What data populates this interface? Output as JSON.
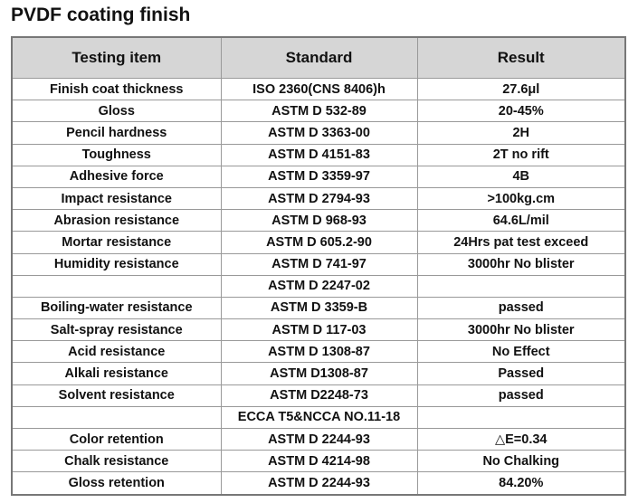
{
  "title": "PVDF coating finish",
  "table": {
    "headers": [
      "Testing item",
      "Standard",
      "Result"
    ],
    "rows": [
      [
        "Finish coat thickness",
        "ISO 2360(CNS 8406)h",
        "27.6μl"
      ],
      [
        "Gloss",
        "ASTM D 532-89",
        "20-45%"
      ],
      [
        "Pencil hardness",
        "ASTM D 3363-00",
        "2H"
      ],
      [
        "Toughness",
        "ASTM D 4151-83",
        "2T no rift"
      ],
      [
        "Adhesive force",
        "ASTM D 3359-97",
        "4B"
      ],
      [
        "Impact resistance",
        "ASTM D 2794-93",
        ">100kg.cm"
      ],
      [
        "Abrasion resistance",
        "ASTM D 968-93",
        "64.6L/mil"
      ],
      [
        "Mortar resistance",
        "ASTM D 605.2-90",
        "24Hrs pat test exceed"
      ],
      [
        "Humidity resistance",
        "ASTM D 741-97",
        "3000hr No blister"
      ],
      [
        null,
        "ASTM D 2247-02",
        null
      ],
      [
        "Boiling-water resistance",
        "ASTM D 3359-B",
        "passed"
      ],
      [
        "Salt-spray resistance",
        "ASTM D 117-03",
        "3000hr No blister"
      ],
      [
        "Acid resistance",
        "ASTM D 1308-87",
        "No Effect"
      ],
      [
        "Alkali resistance",
        "ASTM D1308-87",
        "Passed"
      ],
      [
        "Solvent resistance",
        "ASTM D2248-73",
        "passed"
      ],
      [
        null,
        "ECCA T5&NCCA NO.11-18",
        null
      ],
      [
        "Color retention",
        "ASTM D 2244-93",
        "△E=0.34"
      ],
      [
        "Chalk resistance",
        "ASTM D 4214-98",
        "No Chalking"
      ],
      [
        "Gloss retention",
        "ASTM D 2244-93",
        "84.20%"
      ]
    ]
  }
}
